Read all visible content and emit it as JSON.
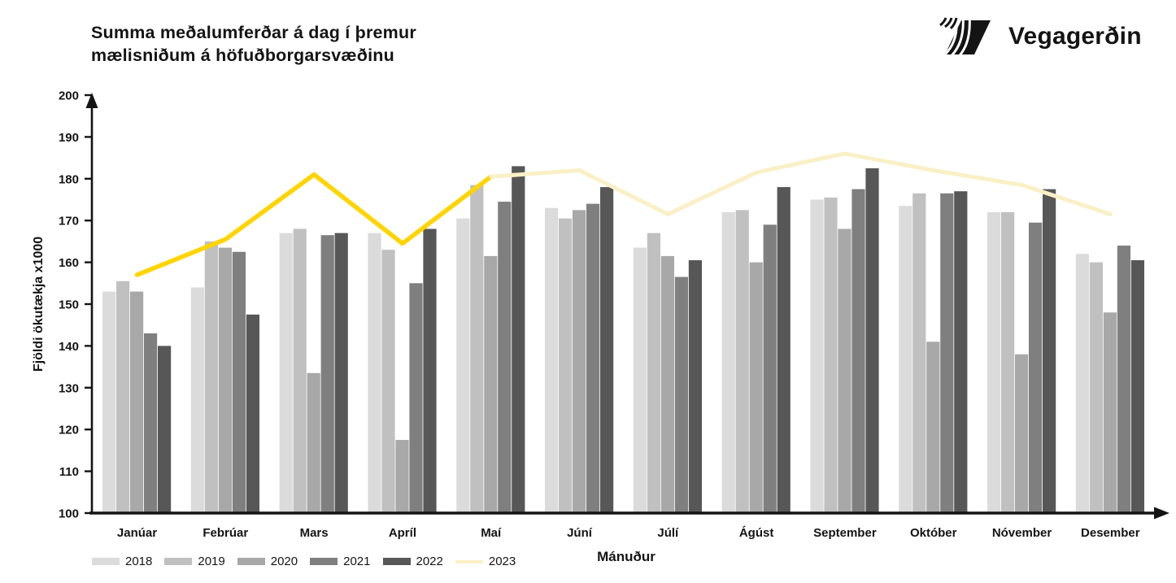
{
  "header": {
    "title_line1": "Summa meðalumferðar á dag í þremur",
    "title_line2": "mælisniðum á höfuðborgarsvæðinu",
    "logo_text": "Vegagerðin"
  },
  "chart_data": {
    "type": "bar",
    "title": "Summa meðalumferðar á dag í þremur mælisniðum á höfuðborgarsvæðinu",
    "xlabel": "Mánuður",
    "ylabel": "Fjöldi ökutækja x1000",
    "ylim": [
      100,
      200
    ],
    "ytick_step": 10,
    "grid": false,
    "legend_position": "bottom-left",
    "categories": [
      "Janúar",
      "Febrúar",
      "Mars",
      "Apríl",
      "Maí",
      "Júní",
      "Júlí",
      "Ágúst",
      "September",
      "Október",
      "Nóvember",
      "Desember"
    ],
    "series": [
      {
        "name": "2018",
        "type": "bar",
        "color": "#DBDBDB",
        "values": [
          153,
          154,
          167,
          167,
          170.5,
          173,
          163.5,
          172,
          175,
          173.5,
          172,
          162
        ]
      },
      {
        "name": "2019",
        "type": "bar",
        "color": "#C0C0C0",
        "values": [
          155.5,
          165,
          168,
          163,
          178.5,
          170.5,
          167,
          172.5,
          175.5,
          176.5,
          172,
          160
        ]
      },
      {
        "name": "2020",
        "type": "bar",
        "color": "#A8A8A8",
        "values": [
          153,
          163.5,
          133.5,
          117.5,
          161.5,
          172.5,
          161.5,
          160,
          168,
          141,
          138,
          148
        ]
      },
      {
        "name": "2021",
        "type": "bar",
        "color": "#7F7F7F",
        "values": [
          143,
          162.5,
          166.5,
          155,
          174.5,
          174,
          156.5,
          169,
          177.5,
          176.5,
          169.5,
          164
        ]
      },
      {
        "name": "2022",
        "type": "bar",
        "color": "#575757",
        "values": [
          140,
          147.5,
          167,
          168,
          183,
          178,
          160.5,
          178,
          182.5,
          177,
          177.5,
          160.5
        ]
      },
      {
        "name": "2023",
        "type": "line",
        "legend_color": "#FAF0C6",
        "segments": [
          {
            "from": 0,
            "to": 4,
            "color": "#FFD400",
            "width": 5.5
          },
          {
            "from": 4,
            "to": 11,
            "color": "#FAF0C6",
            "width": 5
          }
        ],
        "values": [
          157,
          165.5,
          181,
          164.5,
          180.5,
          182,
          171.5,
          181.5,
          186,
          182,
          178.5,
          171.5
        ]
      }
    ]
  }
}
